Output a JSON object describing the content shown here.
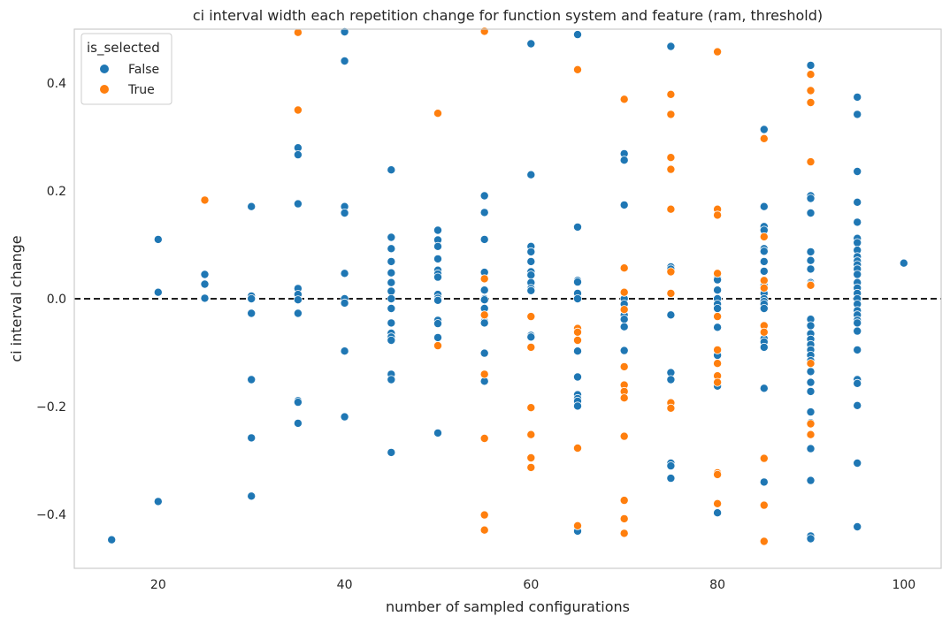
{
  "chart_data": {
    "type": "scatter",
    "title": "ci interval width each repetition change for function system and feature (ram, threshold)",
    "xlabel": "number of sampled configurations",
    "ylabel": "ci interval change",
    "xlim": [
      11,
      104
    ],
    "ylim": [
      -0.5,
      0.5
    ],
    "xticks": [
      20,
      40,
      60,
      80,
      100
    ],
    "yticks": [
      -0.4,
      -0.2,
      0.0,
      0.2,
      0.4
    ],
    "ytick_labels": [
      "−0.4",
      "−0.2",
      "0.0",
      "0.2",
      "0.4"
    ],
    "xtick_labels": [
      "20",
      "40",
      "60",
      "80",
      "100"
    ],
    "grid": false,
    "reference_line": {
      "y": 0.0,
      "style": "dashed",
      "color": "#000000"
    },
    "legend": {
      "title": "is_selected",
      "placement": "upper-left"
    },
    "series": [
      {
        "name": "False",
        "color": "#1f77b4",
        "points": [
          [
            15,
            -0.447
          ],
          [
            20,
            0.11
          ],
          [
            20,
            0.012
          ],
          [
            20,
            -0.376
          ],
          [
            25,
            0.045
          ],
          [
            25,
            0.027
          ],
          [
            25,
            0.001
          ],
          [
            30,
            0.171
          ],
          [
            30,
            0.005
          ],
          [
            30,
            0.0
          ],
          [
            30,
            -0.027
          ],
          [
            30,
            -0.15
          ],
          [
            30,
            -0.258
          ],
          [
            30,
            -0.366
          ],
          [
            35,
            0.28
          ],
          [
            35,
            0.267
          ],
          [
            35,
            0.176
          ],
          [
            35,
            0.019
          ],
          [
            35,
            0.008
          ],
          [
            35,
            -0.002
          ],
          [
            35,
            -0.027
          ],
          [
            35,
            -0.189
          ],
          [
            35,
            -0.192
          ],
          [
            35,
            -0.231
          ],
          [
            40,
            0.495
          ],
          [
            40,
            0.441
          ],
          [
            40,
            0.171
          ],
          [
            40,
            0.159
          ],
          [
            40,
            0.047
          ],
          [
            40,
            0.0
          ],
          [
            40,
            -0.008
          ],
          [
            40,
            -0.097
          ],
          [
            40,
            -0.219
          ],
          [
            45,
            0.239
          ],
          [
            45,
            0.114
          ],
          [
            45,
            0.093
          ],
          [
            45,
            0.069
          ],
          [
            45,
            0.048
          ],
          [
            45,
            0.03
          ],
          [
            45,
            0.014
          ],
          [
            45,
            0.0
          ],
          [
            45,
            -0.018
          ],
          [
            45,
            -0.045
          ],
          [
            45,
            -0.064
          ],
          [
            45,
            -0.071
          ],
          [
            45,
            -0.077
          ],
          [
            45,
            -0.14
          ],
          [
            45,
            -0.15
          ],
          [
            45,
            -0.285
          ],
          [
            50,
            0.127
          ],
          [
            50,
            0.109
          ],
          [
            50,
            0.097
          ],
          [
            50,
            0.074
          ],
          [
            50,
            0.053
          ],
          [
            50,
            0.046
          ],
          [
            50,
            0.04
          ],
          [
            50,
            0.008
          ],
          [
            50,
            0.001
          ],
          [
            50,
            -0.003
          ],
          [
            50,
            -0.04
          ],
          [
            50,
            -0.046
          ],
          [
            50,
            -0.072
          ],
          [
            50,
            -0.249
          ],
          [
            55,
            0.191
          ],
          [
            55,
            0.16
          ],
          [
            55,
            0.11
          ],
          [
            55,
            0.049
          ],
          [
            55,
            0.016
          ],
          [
            55,
            0.0
          ],
          [
            55,
            -0.002
          ],
          [
            55,
            -0.018
          ],
          [
            55,
            -0.042
          ],
          [
            55,
            -0.045
          ],
          [
            55,
            -0.101
          ],
          [
            55,
            -0.153
          ],
          [
            60,
            0.473
          ],
          [
            60,
            0.23
          ],
          [
            60,
            0.097
          ],
          [
            60,
            0.087
          ],
          [
            60,
            0.069
          ],
          [
            60,
            0.05
          ],
          [
            60,
            0.044
          ],
          [
            60,
            0.03
          ],
          [
            60,
            0.019
          ],
          [
            60,
            0.015
          ],
          [
            60,
            -0.068
          ],
          [
            60,
            -0.071
          ],
          [
            65,
            0.49
          ],
          [
            65,
            0.133
          ],
          [
            65,
            0.034
          ],
          [
            65,
            0.031
          ],
          [
            65,
            0.01
          ],
          [
            65,
            0.0
          ],
          [
            65,
            -0.097
          ],
          [
            65,
            -0.145
          ],
          [
            65,
            -0.178
          ],
          [
            65,
            -0.185
          ],
          [
            65,
            -0.19
          ],
          [
            65,
            -0.199
          ],
          [
            65,
            -0.431
          ],
          [
            70,
            0.269
          ],
          [
            70,
            0.257
          ],
          [
            70,
            0.174
          ],
          [
            70,
            0.0
          ],
          [
            70,
            -0.01
          ],
          [
            70,
            -0.03
          ],
          [
            70,
            -0.038
          ],
          [
            70,
            -0.052
          ],
          [
            70,
            -0.096
          ],
          [
            75,
            0.468
          ],
          [
            75,
            0.059
          ],
          [
            75,
            0.055
          ],
          [
            75,
            -0.03
          ],
          [
            75,
            -0.137
          ],
          [
            75,
            -0.15
          ],
          [
            75,
            -0.305
          ],
          [
            75,
            -0.31
          ],
          [
            75,
            -0.333
          ],
          [
            80,
            0.039
          ],
          [
            80,
            0.035
          ],
          [
            80,
            0.016
          ],
          [
            80,
            0.0
          ],
          [
            80,
            -0.01
          ],
          [
            80,
            -0.018
          ],
          [
            80,
            -0.053
          ],
          [
            80,
            -0.105
          ],
          [
            80,
            -0.162
          ],
          [
            80,
            -0.397
          ],
          [
            85,
            0.314
          ],
          [
            85,
            0.171
          ],
          [
            85,
            0.134
          ],
          [
            85,
            0.127
          ],
          [
            85,
            0.093
          ],
          [
            85,
            0.088
          ],
          [
            85,
            0.069
          ],
          [
            85,
            0.051
          ],
          [
            85,
            0.025
          ],
          [
            85,
            0.01
          ],
          [
            85,
            0.0
          ],
          [
            85,
            -0.005
          ],
          [
            85,
            -0.01
          ],
          [
            85,
            -0.018
          ],
          [
            85,
            -0.074
          ],
          [
            85,
            -0.08
          ],
          [
            85,
            -0.09
          ],
          [
            85,
            -0.166
          ],
          [
            85,
            -0.34
          ],
          [
            90,
            0.433
          ],
          [
            90,
            0.191
          ],
          [
            90,
            0.186
          ],
          [
            90,
            0.159
          ],
          [
            90,
            0.087
          ],
          [
            90,
            0.071
          ],
          [
            90,
            0.055
          ],
          [
            90,
            0.03
          ],
          [
            90,
            0.027
          ],
          [
            90,
            -0.038
          ],
          [
            90,
            -0.05
          ],
          [
            90,
            -0.065
          ],
          [
            90,
            -0.075
          ],
          [
            90,
            -0.085
          ],
          [
            90,
            -0.095
          ],
          [
            90,
            -0.105
          ],
          [
            90,
            -0.115
          ],
          [
            90,
            -0.135
          ],
          [
            90,
            -0.155
          ],
          [
            90,
            -0.172
          ],
          [
            90,
            -0.21
          ],
          [
            90,
            -0.23
          ],
          [
            90,
            -0.278
          ],
          [
            90,
            -0.337
          ],
          [
            90,
            -0.44
          ],
          [
            90,
            -0.445
          ],
          [
            95,
            0.374
          ],
          [
            95,
            0.342
          ],
          [
            95,
            0.236
          ],
          [
            95,
            0.179
          ],
          [
            95,
            0.142
          ],
          [
            95,
            0.112
          ],
          [
            95,
            0.104
          ],
          [
            95,
            0.09
          ],
          [
            95,
            0.078
          ],
          [
            95,
            0.07
          ],
          [
            95,
            0.063
          ],
          [
            95,
            0.055
          ],
          [
            95,
            0.045
          ],
          [
            95,
            0.03
          ],
          [
            95,
            0.02
          ],
          [
            95,
            0.01
          ],
          [
            95,
            0.0
          ],
          [
            95,
            -0.01
          ],
          [
            95,
            -0.022
          ],
          [
            95,
            -0.03
          ],
          [
            95,
            -0.04
          ],
          [
            95,
            -0.045
          ],
          [
            95,
            -0.06
          ],
          [
            95,
            -0.095
          ],
          [
            95,
            -0.15
          ],
          [
            95,
            -0.157
          ],
          [
            95,
            -0.198
          ],
          [
            95,
            -0.305
          ],
          [
            95,
            -0.423
          ],
          [
            100,
            0.066
          ]
        ]
      },
      {
        "name": "True",
        "color": "#ff7f0e",
        "points": [
          [
            25,
            0.183
          ],
          [
            35,
            0.494
          ],
          [
            35,
            0.35
          ],
          [
            50,
            0.344
          ],
          [
            50,
            -0.087
          ],
          [
            55,
            0.496
          ],
          [
            55,
            0.037
          ],
          [
            55,
            -0.03
          ],
          [
            55,
            -0.14
          ],
          [
            55,
            -0.259
          ],
          [
            55,
            -0.401
          ],
          [
            55,
            -0.429
          ],
          [
            60,
            -0.033
          ],
          [
            60,
            -0.09
          ],
          [
            60,
            -0.202
          ],
          [
            60,
            -0.252
          ],
          [
            60,
            -0.295
          ],
          [
            60,
            -0.313
          ],
          [
            65,
            0.425
          ],
          [
            65,
            -0.055
          ],
          [
            65,
            -0.062
          ],
          [
            65,
            -0.077
          ],
          [
            65,
            -0.277
          ],
          [
            65,
            -0.421
          ],
          [
            70,
            0.37
          ],
          [
            70,
            0.057
          ],
          [
            70,
            0.012
          ],
          [
            70,
            -0.02
          ],
          [
            70,
            -0.126
          ],
          [
            70,
            -0.16
          ],
          [
            70,
            -0.172
          ],
          [
            70,
            -0.184
          ],
          [
            70,
            -0.255
          ],
          [
            70,
            -0.374
          ],
          [
            70,
            -0.408
          ],
          [
            70,
            -0.435
          ],
          [
            75,
            0.379
          ],
          [
            75,
            0.342
          ],
          [
            75,
            0.262
          ],
          [
            75,
            0.24
          ],
          [
            75,
            0.166
          ],
          [
            75,
            0.05
          ],
          [
            75,
            0.01
          ],
          [
            75,
            -0.193
          ],
          [
            75,
            -0.203
          ],
          [
            80,
            0.458
          ],
          [
            80,
            0.166
          ],
          [
            80,
            0.155
          ],
          [
            80,
            0.047
          ],
          [
            80,
            -0.033
          ],
          [
            80,
            -0.095
          ],
          [
            80,
            -0.12
          ],
          [
            80,
            -0.143
          ],
          [
            80,
            -0.155
          ],
          [
            80,
            -0.323
          ],
          [
            80,
            -0.326
          ],
          [
            80,
            -0.38
          ],
          [
            85,
            0.297
          ],
          [
            85,
            0.115
          ],
          [
            85,
            0.034
          ],
          [
            85,
            0.02
          ],
          [
            85,
            -0.05
          ],
          [
            85,
            -0.062
          ],
          [
            85,
            -0.296
          ],
          [
            85,
            -0.383
          ],
          [
            85,
            -0.45
          ],
          [
            90,
            0.416
          ],
          [
            90,
            0.386
          ],
          [
            90,
            0.364
          ],
          [
            90,
            0.254
          ],
          [
            90,
            0.025
          ],
          [
            90,
            -0.12
          ],
          [
            90,
            -0.232
          ],
          [
            90,
            -0.252
          ]
        ]
      }
    ]
  }
}
